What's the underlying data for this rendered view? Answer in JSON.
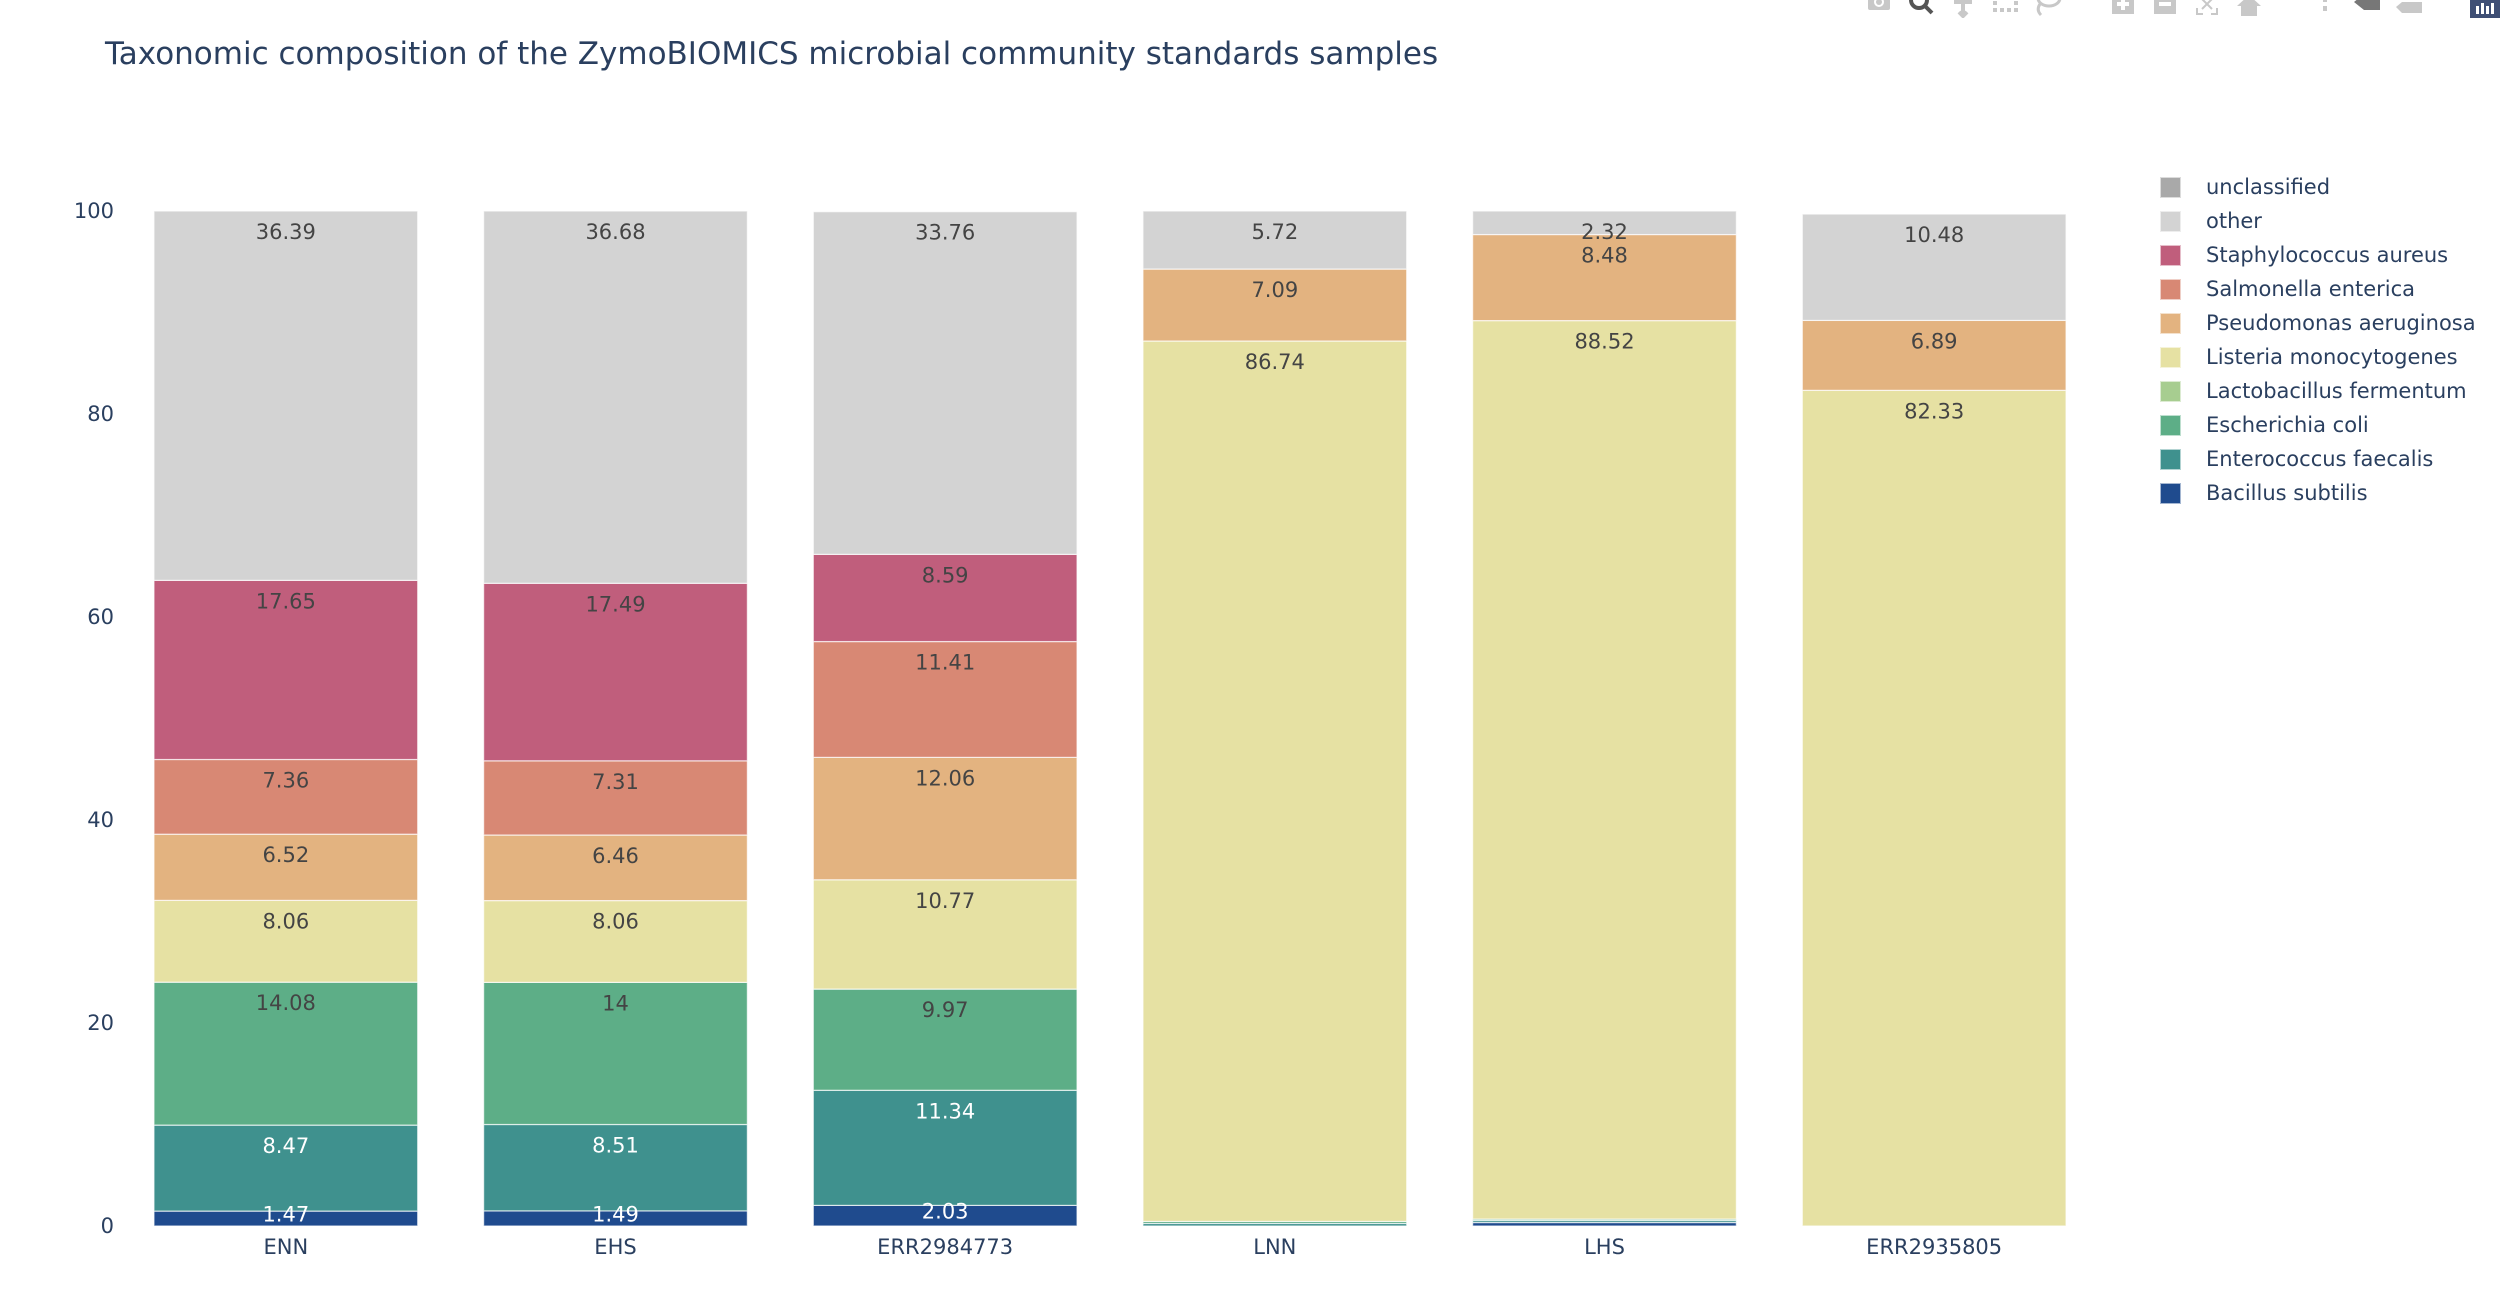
{
  "modebar": {
    "buttons": [
      {
        "name": "camera-icon",
        "label": "Download plot as a png",
        "active": false
      },
      {
        "name": "zoom-icon",
        "label": "Zoom",
        "active": true
      },
      {
        "name": "pan-icon",
        "label": "Pan",
        "active": false
      },
      {
        "name": "box-select-icon",
        "label": "Box Select",
        "active": false
      },
      {
        "name": "lasso-select-icon",
        "label": "Lasso Select",
        "active": false
      },
      {
        "name": "zoom-in-icon",
        "label": "Zoom in",
        "active": false
      },
      {
        "name": "zoom-out-icon",
        "label": "Zoom out",
        "active": false
      },
      {
        "name": "autoscale-icon",
        "label": "Autoscale",
        "active": false
      },
      {
        "name": "reset-axes-icon",
        "label": "Reset axes",
        "active": false
      },
      {
        "name": "spike-lines-icon",
        "label": "Toggle Spike Lines",
        "active": false
      },
      {
        "name": "hover-compare-icon",
        "label": "Compare data on hover",
        "active": true
      },
      {
        "name": "hover-closest-icon",
        "label": "Show closest data on hover",
        "active": false
      },
      {
        "name": "plotly-logo-icon",
        "label": "Produced with Plotly",
        "active": false
      }
    ]
  },
  "chart_data": {
    "type": "bar",
    "barmode": "stack",
    "title": "Taxonomic composition of the ZymoBIOMICS microbial community standards samples",
    "xlabel": "",
    "ylabel": "",
    "ylim": [
      0,
      100
    ],
    "yticks": [
      0,
      20,
      40,
      60,
      80,
      100
    ],
    "grid": false,
    "legend_position": "right",
    "categories": [
      "ENN",
      "EHS",
      "ERR2984773",
      "LNN",
      "LHS",
      "ERR2935805"
    ],
    "series": [
      {
        "name": "Bacillus subtilis",
        "color": "#1f4b8e",
        "label_color": "#ffffff",
        "values": [
          1.47,
          1.49,
          2.03,
          0.0,
          0.34,
          0.0
        ]
      },
      {
        "name": "Enterococcus faecalis",
        "color": "#3f918e",
        "label_color": "#ffffff",
        "values": [
          8.47,
          8.51,
          11.34,
          0.25,
          0.2,
          0.0
        ]
      },
      {
        "name": "Escherichia coli",
        "color": "#5dae87",
        "label_color": "#444444",
        "values": [
          14.08,
          14.0,
          9.97,
          0.2,
          0.14,
          0.0
        ]
      },
      {
        "name": "Lactobacillus fermentum",
        "color": "#a7cd90",
        "label_color": "#444444",
        "values": [
          0.0,
          0.0,
          0.0,
          0.0,
          0.0,
          0.0
        ]
      },
      {
        "name": "Listeria monocytogenes",
        "color": "#e6e1a3",
        "label_color": "#444444",
        "values": [
          8.06,
          8.06,
          10.77,
          86.74,
          88.52,
          82.33
        ]
      },
      {
        "name": "Pseudomonas aeruginosa",
        "color": "#e3b380",
        "label_color": "#444444",
        "values": [
          6.52,
          6.46,
          12.06,
          7.09,
          8.48,
          6.89
        ]
      },
      {
        "name": "Salmonella enterica",
        "color": "#d88874",
        "label_color": "#444444",
        "values": [
          7.36,
          7.31,
          11.41,
          0.0,
          0.0,
          0.0
        ]
      },
      {
        "name": "Staphylococcus aureus",
        "color": "#c05e7c",
        "label_color": "#444444",
        "values": [
          17.65,
          17.49,
          8.59,
          0.0,
          0.0,
          0.0
        ]
      },
      {
        "name": "other",
        "color": "#d3d3d3",
        "label_color": "#444444",
        "values": [
          36.39,
          36.68,
          33.76,
          5.72,
          2.32,
          10.48
        ]
      },
      {
        "name": "unclassified",
        "color": "#a9a9a9",
        "label_color": "#444444",
        "values": [
          0.0,
          0.0,
          0.0,
          0.0,
          0.0,
          0.0
        ]
      }
    ],
    "legend_order": [
      "unclassified",
      "other",
      "Staphylococcus aureus",
      "Salmonella enterica",
      "Pseudomonas aeruginosa",
      "Listeria monocytogenes",
      "Lactobacillus fermentum",
      "Escherichia coli",
      "Enterococcus faecalis",
      "Bacillus subtilis"
    ]
  }
}
